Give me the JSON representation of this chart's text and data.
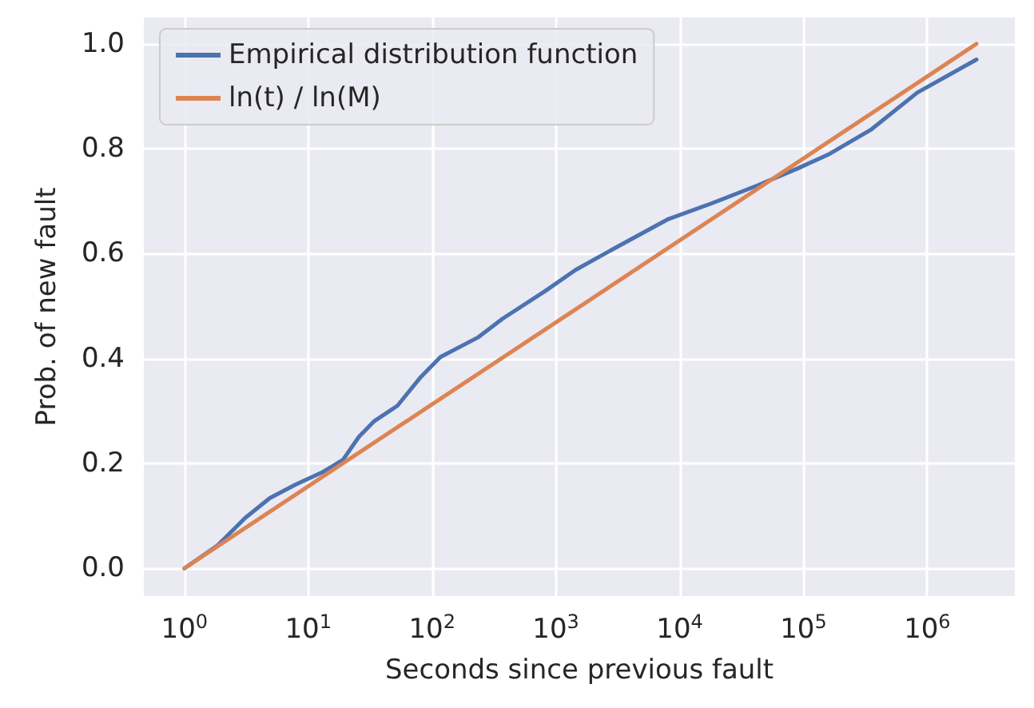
{
  "chart_data": {
    "type": "line",
    "xlabel": "Seconds since previous fault",
    "ylabel": "Prob. of new fault",
    "log": "x",
    "grid": true,
    "legend": "top left",
    "line_style": "solid",
    "marker": "none",
    "xlim": [
      0.47,
      5100000
    ],
    "xticks": [
      {
        "value": 1,
        "label": "10$^{0}$"
      },
      {
        "value": 10,
        "label": "10$^{1}$"
      },
      {
        "value": 100,
        "label": "10$^{2}$"
      },
      {
        "value": 1000,
        "label": "10$^{3}$"
      },
      {
        "value": 10000,
        "label": "10$^{4}$"
      },
      {
        "value": 100000,
        "label": "10$^{5}$"
      },
      {
        "value": 1000000,
        "label": "10$^{6}$"
      }
    ],
    "ylim": [
      -0.053,
      1.05
    ],
    "yticks": [
      {
        "value": 0,
        "label": "0.0"
      },
      {
        "value": 0.2,
        "label": "0.2"
      },
      {
        "value": 0.4,
        "label": "0.4"
      },
      {
        "value": 0.6,
        "label": "0.6"
      },
      {
        "value": 0.8,
        "label": "0.8"
      },
      {
        "value": 1,
        "label": "1.0"
      }
    ],
    "series": [
      {
        "name": "Empirical distribution function",
        "color": "#4c72b0",
        "x": [
          1,
          1.86,
          3.09,
          4.9,
          7.94,
          13.2,
          19.1,
          25.7,
          33.9,
          52.5,
          81.3,
          117,
          234,
          372,
          813,
          1445,
          2818,
          8128,
          17780,
          42660,
          91200,
          162200,
          354800,
          831800,
          2500000
        ],
        "values": [
          0,
          0.044,
          0.096,
          0.134,
          0.16,
          0.184,
          0.207,
          0.251,
          0.28,
          0.31,
          0.365,
          0.403,
          0.44,
          0.476,
          0.528,
          0.569,
          0.607,
          0.666,
          0.695,
          0.73,
          0.763,
          0.79,
          0.837,
          0.907,
          0.97
        ]
      },
      {
        "name": "ln(t) / ln(M)",
        "color": "#dd8452",
        "x": [
          1,
          2500000
        ],
        "values": [
          0,
          1
        ]
      }
    ]
  }
}
